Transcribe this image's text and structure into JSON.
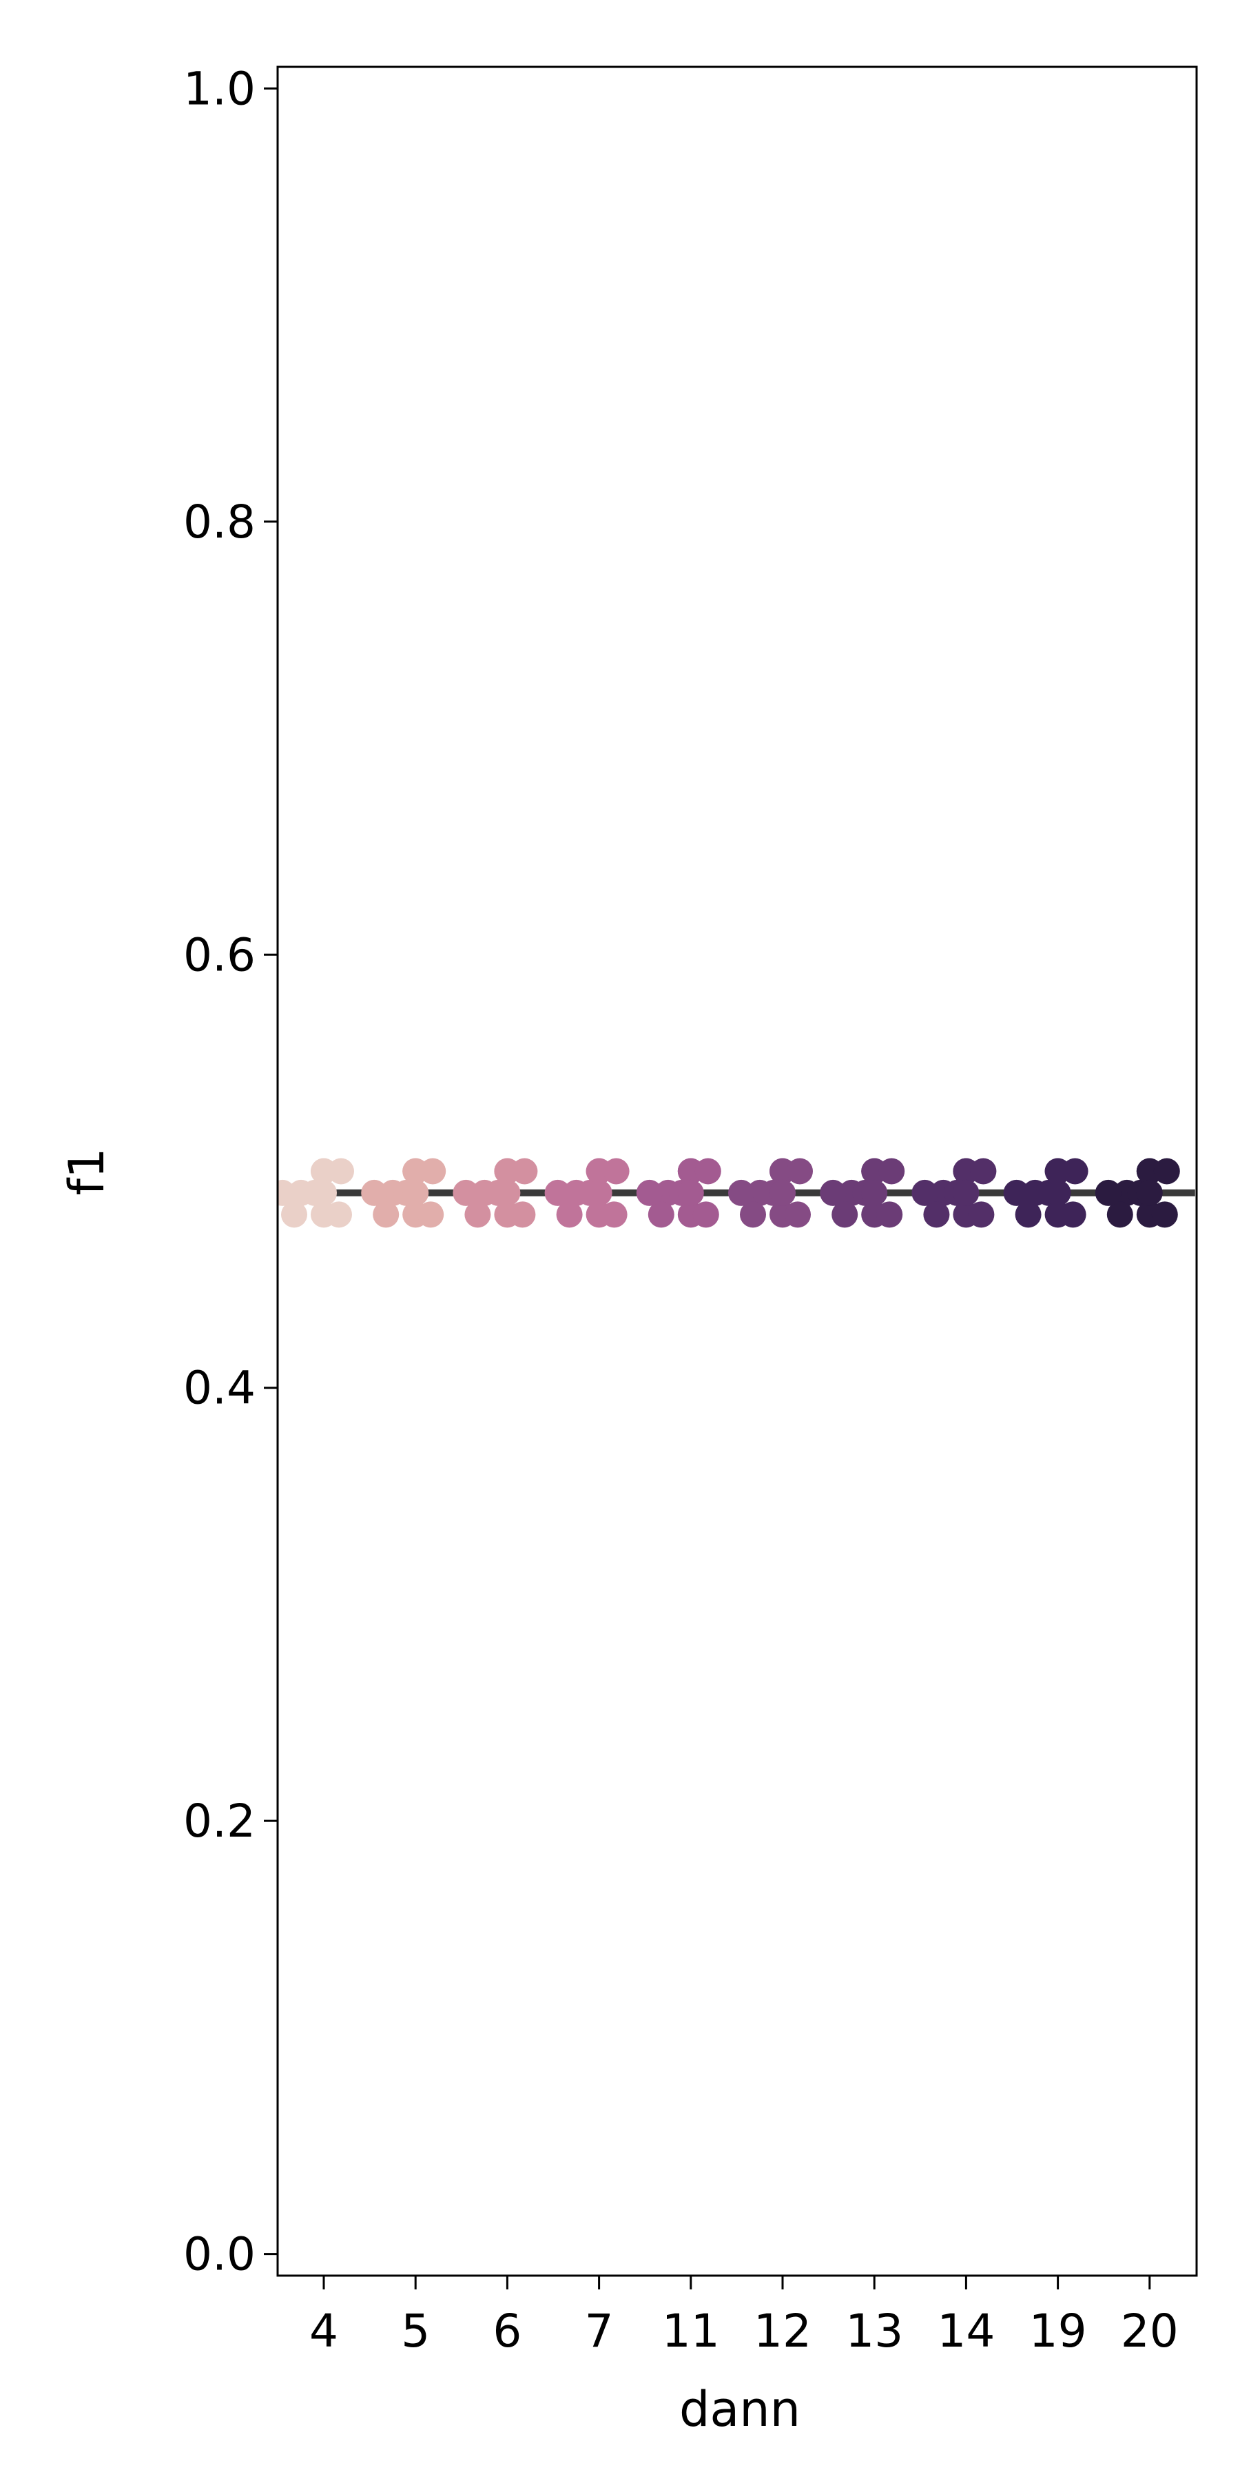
{
  "chart_data": {
    "type": "scatter",
    "subtype": "swarm",
    "xlabel": "dann",
    "ylabel": "f1",
    "categories": [
      "4",
      "5",
      "6",
      "7",
      "11",
      "12",
      "13",
      "14",
      "19",
      "20"
    ],
    "ylim": [
      -0.01,
      1.01
    ],
    "yticks": [
      0.0,
      0.2,
      0.4,
      0.6,
      0.8,
      1.0
    ],
    "ytick_labels": [
      "0.0",
      "0.2",
      "0.4",
      "0.6",
      "0.8",
      "1.0"
    ],
    "grid": false,
    "legend": "none",
    "palette": [
      "#ead0c8",
      "#e1aeab",
      "#d390a0",
      "#c0749a",
      "#a35b91",
      "#854b84",
      "#6b3c76",
      "#532f68",
      "#3e2458",
      "#2b1b40"
    ],
    "mean_line_color": "#3a3a3a",
    "mean": 0.49,
    "points": [
      {
        "category": "4",
        "values": [
          0.5,
          0.49,
          0.48,
          0.49,
          0.48
        ]
      },
      {
        "category": "5",
        "values": [
          0.5,
          0.49,
          0.48,
          0.49,
          0.48
        ]
      },
      {
        "category": "6",
        "values": [
          0.5,
          0.49,
          0.48,
          0.49,
          0.48
        ]
      },
      {
        "category": "7",
        "values": [
          0.5,
          0.49,
          0.48,
          0.49,
          0.48
        ]
      },
      {
        "category": "11",
        "values": [
          0.5,
          0.49,
          0.48,
          0.49,
          0.48
        ]
      },
      {
        "category": "12",
        "values": [
          0.5,
          0.49,
          0.48,
          0.49,
          0.48
        ]
      },
      {
        "category": "13",
        "values": [
          0.5,
          0.49,
          0.48,
          0.49,
          0.48
        ]
      },
      {
        "category": "14",
        "values": [
          0.5,
          0.49,
          0.48,
          0.49,
          0.48
        ]
      },
      {
        "category": "19",
        "values": [
          0.5,
          0.49,
          0.48,
          0.49,
          0.48
        ]
      },
      {
        "category": "20",
        "values": [
          0.5,
          0.49,
          0.48,
          0.49,
          0.48
        ]
      }
    ]
  }
}
